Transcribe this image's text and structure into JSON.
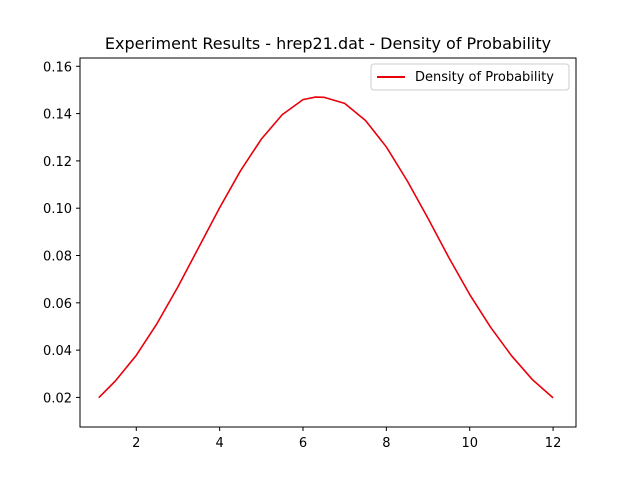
{
  "chart_data": {
    "type": "line",
    "title": "Experiment Results - hrep21.dat - Density of Probability",
    "xlabel": "",
    "ylabel": "",
    "xlim": [
      0.65,
      12.55
    ],
    "ylim": [
      0.0075,
      0.1635
    ],
    "xticks": [
      2,
      4,
      6,
      8,
      10,
      12
    ],
    "yticks": [
      0.02,
      0.04,
      0.06,
      0.08,
      0.1,
      0.12,
      0.14,
      0.16
    ],
    "ytick_labels": [
      "0.02",
      "0.04",
      "0.06",
      "0.08",
      "0.10",
      "0.12",
      "0.14",
      "0.16"
    ],
    "grid": false,
    "legend_position": "top-right",
    "series": [
      {
        "name": "Density of Probability",
        "color": "#e8000b",
        "x": [
          1.1,
          1.5,
          2.0,
          2.5,
          3.0,
          3.5,
          4.0,
          4.5,
          5.0,
          5.5,
          6.0,
          6.3,
          6.5,
          7.0,
          7.5,
          8.0,
          8.5,
          9.0,
          9.5,
          10.0,
          10.5,
          11.0,
          11.5,
          12.0
        ],
        "y": [
          0.0199,
          0.027,
          0.0378,
          0.0513,
          0.0668,
          0.0835,
          0.1002,
          0.1158,
          0.1292,
          0.1395,
          0.1459,
          0.147,
          0.1469,
          0.1443,
          0.1371,
          0.1259,
          0.1116,
          0.0957,
          0.0791,
          0.0635,
          0.0497,
          0.0377,
          0.0276,
          0.0198
        ]
      }
    ]
  }
}
